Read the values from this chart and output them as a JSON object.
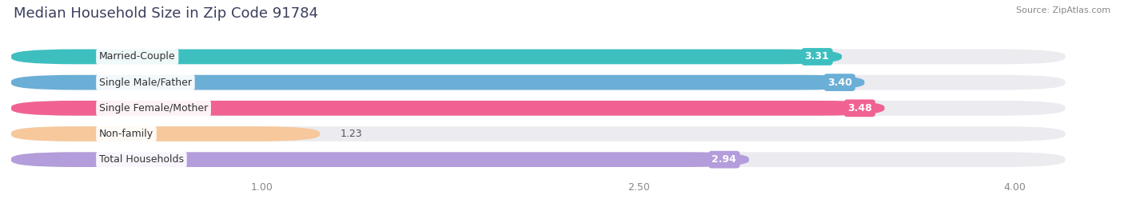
{
  "title": "Median Household Size in Zip Code 91784",
  "source": "Source: ZipAtlas.com",
  "categories": [
    "Married-Couple",
    "Single Male/Father",
    "Single Female/Mother",
    "Non-family",
    "Total Households"
  ],
  "values": [
    3.31,
    3.4,
    3.48,
    1.23,
    2.94
  ],
  "bar_colors": [
    "#3dbfbf",
    "#6baed6",
    "#f06292",
    "#f7c89b",
    "#b39ddb"
  ],
  "value_labels": [
    "3.31",
    "3.40",
    "3.48",
    "1.23",
    "2.94"
  ],
  "value_inside": [
    true,
    true,
    true,
    false,
    true
  ],
  "label_text_colors": [
    "white",
    "white",
    "white",
    "#555555",
    "white"
  ],
  "xlim_min": 0.0,
  "xlim_max": 4.3,
  "xaxis_min": 1.0,
  "xaxis_max": 4.0,
  "xticks": [
    1.0,
    2.5,
    4.0
  ],
  "xtick_labels": [
    "1.00",
    "2.50",
    "4.00"
  ],
  "background_color": "#ffffff",
  "bar_background_color": "#ebebf0",
  "bar_height": 0.58,
  "title_fontsize": 13,
  "label_fontsize": 9,
  "value_fontsize": 9,
  "source_fontsize": 8
}
